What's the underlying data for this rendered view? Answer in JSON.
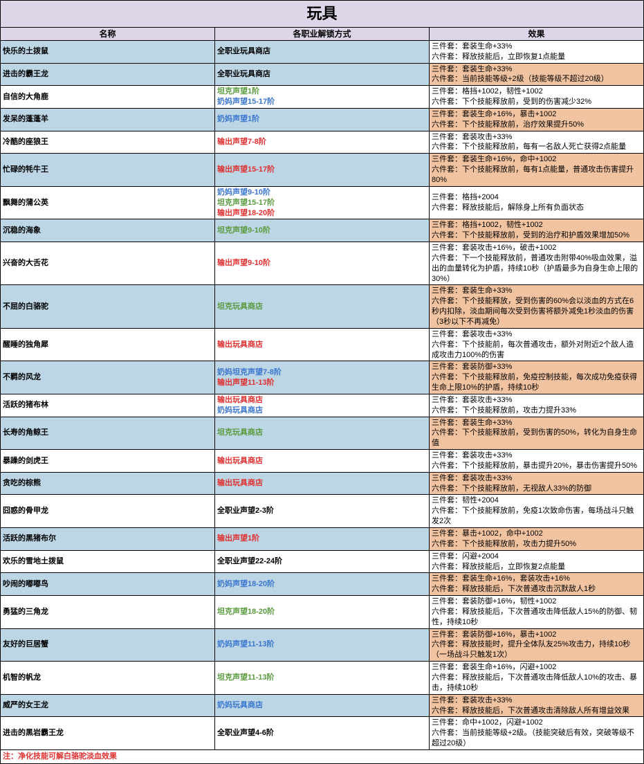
{
  "title": "玩具",
  "headers": {
    "name": "名称",
    "unlock": "各职业解锁方式",
    "effect": "效果"
  },
  "note": "注：净化技能可解白骆驼淡血效果",
  "rows": [
    {
      "name": "快乐的土拨鼠",
      "nbg": "blue",
      "unlock": [
        {
          "t": "全职业玩具商店",
          "c": ""
        }
      ],
      "eff": [
        "三件套：套装生命+33%",
        "六件套：释放技能后，立即恢复1点能量"
      ],
      "ebg": ""
    },
    {
      "name": "进击的霸王龙",
      "nbg": "blue",
      "unlock": [
        {
          "t": "全职业玩具商店",
          "c": ""
        }
      ],
      "eff": [
        "三件套：套装生命+33%",
        "六件套：当前技能等级+2级（技能等级不超过20级）"
      ],
      "ebg": "orange"
    },
    {
      "name": "自信的大角鹿",
      "nbg": "",
      "unlock": [
        {
          "t": "坦克声望1阶",
          "c": "green"
        },
        {
          "t": "奶妈声望15-17阶",
          "c": "blue"
        }
      ],
      "eff": [
        "三件套：格挡+1002，韧性+1002",
        "六件套：下个技能释放前，受到的伤害减少32%"
      ],
      "ebg": ""
    },
    {
      "name": "发呆的蓬蓬羊",
      "nbg": "blue",
      "unlock": [
        {
          "t": "奶妈声望1阶",
          "c": "blue"
        }
      ],
      "eff": [
        "三件套：套装生命+16%，暴击+1002",
        "六件套：下个技能释放前，治疗效果提升50%"
      ],
      "ebg": "orange"
    },
    {
      "name": "冷酷的座狼王",
      "nbg": "",
      "unlock": [
        {
          "t": "输出声望7-8阶",
          "c": "red"
        }
      ],
      "eff": [
        "三件套：套装攻击+33%",
        "六件套：下个技能释放前，每有一名敌人死亡获得2点能量"
      ],
      "ebg": ""
    },
    {
      "name": "忙碌的牦牛王",
      "nbg": "blue",
      "unlock": [
        {
          "t": "输出声望15-17阶",
          "c": "red"
        }
      ],
      "eff": [
        "三件套：套装生命+16%，命中+1002",
        "六件套：下个技能释放前，每有1点能量，普通攻击伤害提升80%"
      ],
      "ebg": "orange"
    },
    {
      "name": "飘舞的蒲公英",
      "nbg": "",
      "unlock": [
        {
          "t": "奶妈声望9-10阶",
          "c": "blue"
        },
        {
          "t": "坦克声望15-17阶",
          "c": "green"
        },
        {
          "t": "输出声望18-20阶",
          "c": "red"
        }
      ],
      "eff": [
        "三件套：格挡+2004",
        "六件套：释放技能后，解除身上所有负面状态"
      ],
      "ebg": ""
    },
    {
      "name": "沉稳的海象",
      "nbg": "blue",
      "unlock": [
        {
          "t": "坦克声望9-10阶",
          "c": "green"
        }
      ],
      "eff": [
        "三件套：格挡+1002，韧性+1002",
        "六件套：下个技能释放前，受到的治疗和护盾效果增加50%"
      ],
      "ebg": "orange"
    },
    {
      "name": "兴奋的大舌花",
      "nbg": "",
      "unlock": [
        {
          "t": "输出声望9-10阶",
          "c": "red"
        }
      ],
      "eff": [
        "三件套：套装攻击+16%，破击+1002",
        "六件套：下一个技能释放前，普通攻击附带40%吸血效果，溢出的血量转化为护盾，持续10秒（护盾最多为自身生命上限的30%）"
      ],
      "ebg": ""
    },
    {
      "name": "不屈的白骆驼",
      "nbg": "blue",
      "unlock": [
        {
          "t": "坦克玩具商店",
          "c": "green"
        }
      ],
      "eff": [
        "三件套：套装生命+33%",
        "六件套：下个技能释放，受到伤害的60%会以淡血的方式在6秒内扣除，淡血期间每次受到伤害将额外减免1秒淡血的伤害（3秒以下不再减免）"
      ],
      "ebg": "orange"
    },
    {
      "name": "醒睡的独角犀",
      "nbg": "",
      "unlock": [
        {
          "t": "输出玩具商店",
          "c": "red"
        }
      ],
      "eff": [
        "三件套：套装攻击+33%",
        "六件套：下个技能前，每次普通攻击，额外对附近2个敌人造成攻击力100%的伤害"
      ],
      "ebg": ""
    },
    {
      "name": "不羁的风龙",
      "nbg": "blue",
      "unlock": [
        {
          "t": "奶妈坦克声望7-8阶",
          "c": "blue"
        },
        {
          "t": "输出声望11-13阶",
          "c": "red"
        }
      ],
      "eff": [
        "三件套：套装防御+33%",
        "六件套：下个技能释放前，免疫控制技能，每次成功免疫获得生命上限10%的护盾，持续10秒"
      ],
      "ebg": "orange"
    },
    {
      "name": "活跃的猪布林",
      "nbg": "",
      "unlock": [
        {
          "t": "输出玩具商店",
          "c": "red"
        },
        {
          "t": "奶妈玩具商店",
          "c": "blue"
        }
      ],
      "eff": [
        "三件套：套装攻击+33%",
        "六件套：下个技能释放前，攻击力提升33%"
      ],
      "ebg": ""
    },
    {
      "name": "长寿的角鲸王",
      "nbg": "blue",
      "unlock": [
        {
          "t": "坦克玩具商店",
          "c": "green"
        }
      ],
      "eff": [
        "三件套：套装生命+33%",
        "六件套：下个技能释放前，受到伤害的50%，转化为自身生命值"
      ],
      "ebg": "orange"
    },
    {
      "name": "暴躁的剑虎王",
      "nbg": "",
      "unlock": [
        {
          "t": "输出玩具商店",
          "c": "red"
        }
      ],
      "eff": [
        "三件套：套装攻击+33%",
        "六件套：下个技能释放前，暴击提升20%，暴击伤害提升50%"
      ],
      "ebg": ""
    },
    {
      "name": "贪吃的棕熊",
      "nbg": "blue",
      "unlock": [
        {
          "t": "输出玩具商店",
          "c": "red"
        }
      ],
      "eff": [
        "三件套：套装攻击+33%",
        "六件套：下个技能释放前，无视敌人33%的防御"
      ],
      "ebg": "orange"
    },
    {
      "name": "囧惑的骨甲龙",
      "nbg": "",
      "unlock": [
        {
          "t": "全职业声望2-3阶",
          "c": ""
        }
      ],
      "eff": [
        "三件套：韧性+2004",
        "六件套：下个技能释放前，免疫1次致命伤害，每场战斗只触发2次"
      ],
      "ebg": ""
    },
    {
      "name": "活跃的黑猪布尔",
      "nbg": "blue",
      "unlock": [
        {
          "t": "输出声望1阶",
          "c": "red"
        }
      ],
      "eff": [
        "三件套：暴击+1002，命中+1002",
        "六件套：下个技能释放前，攻击力提升50%"
      ],
      "ebg": "orange"
    },
    {
      "name": "欢乐的雪地土拨鼠",
      "nbg": "",
      "unlock": [
        {
          "t": "全职业声望22-24阶",
          "c": ""
        }
      ],
      "eff": [
        "三件套：闪避+2004",
        "六件套：释放技能后，立即恢复2点能量"
      ],
      "ebg": ""
    },
    {
      "name": "吵闹的嘟嘟鸟",
      "nbg": "blue",
      "unlock": [
        {
          "t": "奶妈声望18-20阶",
          "c": "blue"
        }
      ],
      "eff": [
        "三件套：套装生命+16%，套装攻击+16%",
        "六件套：释放技能后，下次普通攻击沉默敌人1秒"
      ],
      "ebg": "orange"
    },
    {
      "name": "勇猛的三角龙",
      "nbg": "",
      "unlock": [
        {
          "t": "坦克声望18-20阶",
          "c": "green"
        }
      ],
      "eff": [
        "三件套：套装防御+16%，韧性+1002",
        "六件套：释放技能后，下次普通攻击降低敌人15%的防御、韧性，持续10秒"
      ],
      "ebg": ""
    },
    {
      "name": "友好的巨居蟹",
      "nbg": "blue",
      "unlock": [
        {
          "t": "奶妈声望11-13阶",
          "c": "blue"
        }
      ],
      "eff": [
        "三件套：套装防御+16%，暴击+1002",
        "六件套：释放技能时，提升全体队友25%攻击力，持续10秒（一场战斗只触发1次）"
      ],
      "ebg": "orange"
    },
    {
      "name": "机智的帆龙",
      "nbg": "",
      "unlock": [
        {
          "t": "坦克声望11-13阶",
          "c": "green"
        }
      ],
      "eff": [
        "三件套：套装生命+16%，闪避+1002",
        "六件套：释放技能后，下次普通攻击降低敌人10%的攻击、暴击，持续10秒"
      ],
      "ebg": ""
    },
    {
      "name": "威严的女王龙",
      "nbg": "blue",
      "unlock": [
        {
          "t": "奶妈玩具商店",
          "c": "blue"
        }
      ],
      "eff": [
        "三件套：套装攻击+33%",
        "六件套：释放技能后，下次普通攻击清除敌人所有增益效果"
      ],
      "ebg": "orange"
    },
    {
      "name": "进击的黑岩霸王龙",
      "nbg": "",
      "unlock": [
        {
          "t": "全职业声望4-6阶",
          "c": ""
        }
      ],
      "eff": [
        "三件套：命中+1002，闪避+1002",
        "六件套：当前技能等级+2级。（技能突破后有效，突破等级不超过20级）"
      ],
      "ebg": ""
    }
  ]
}
